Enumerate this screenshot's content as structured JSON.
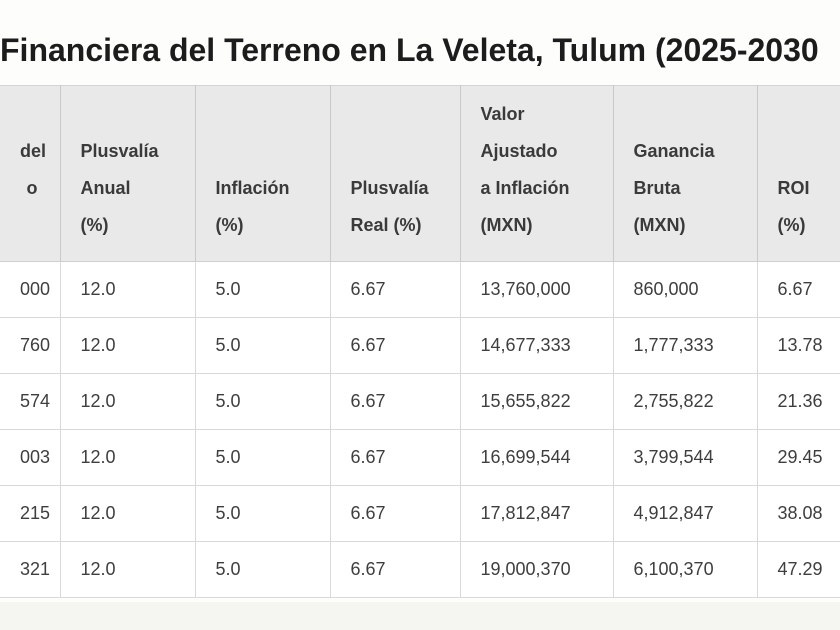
{
  "title": {
    "visible_text": "Financiera del Terreno en La Veleta, Tulum (2025-2030"
  },
  "table": {
    "columns": [
      {
        "label": "del\no"
      },
      {
        "label": "Plusvalía\nAnual\n(%)"
      },
      {
        "label": "Inflación\n(%)"
      },
      {
        "label": "Plusvalía\nReal (%)"
      },
      {
        "label": "Valor\nAjustado\na Inflación\n(MXN)"
      },
      {
        "label": "Ganancia\nBruta\n(MXN)"
      },
      {
        "label": "ROI\n(%)"
      }
    ],
    "rows": [
      {
        "cells": [
          "000",
          "12.0",
          "5.0",
          "6.67",
          "13,760,000",
          "860,000",
          "6.67"
        ]
      },
      {
        "cells": [
          "760",
          "12.0",
          "5.0",
          "6.67",
          "14,677,333",
          "1,777,333",
          "13.78"
        ]
      },
      {
        "cells": [
          "574",
          "12.0",
          "5.0",
          "6.67",
          "15,655,822",
          "2,755,822",
          "21.36"
        ]
      },
      {
        "cells": [
          "003",
          "12.0",
          "5.0",
          "6.67",
          "16,699,544",
          "3,799,544",
          "29.45"
        ]
      },
      {
        "cells": [
          "215",
          "12.0",
          "5.0",
          "6.67",
          "17,812,847",
          "4,912,847",
          "38.08"
        ]
      },
      {
        "cells": [
          "321",
          "12.0",
          "5.0",
          "6.67",
          "19,000,370",
          "6,100,370",
          "47.29"
        ]
      }
    ]
  },
  "colors": {
    "page_bg": "#fdfdfb",
    "strip_bg": "#f5f5f2",
    "header_bg": "#e9e9e9",
    "header_text": "#3a3a3a",
    "body_text": "#3e3e3e",
    "title_color": "#1c1c1c",
    "header_border": "#c9c9c9",
    "body_border": "#d9d9d9",
    "cell_bg": "#ffffff"
  }
}
